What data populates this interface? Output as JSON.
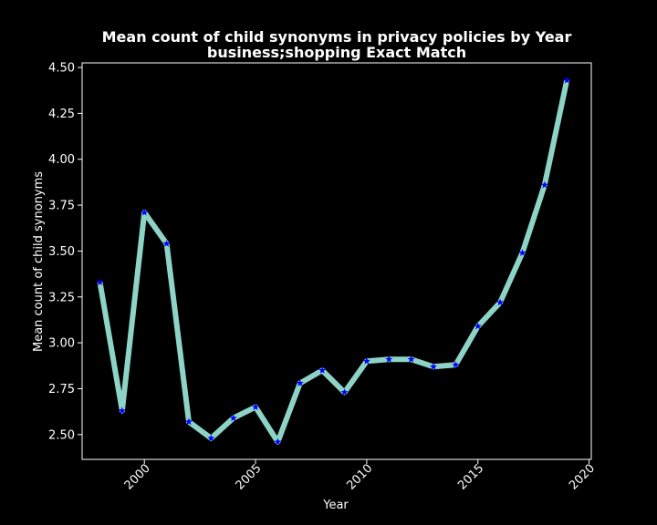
{
  "chart_data": {
    "type": "line",
    "title_line1": "Mean count of child synonyms in privacy policies by Year",
    "title_line2": "business;shopping Exact Match",
    "xlabel": "Year",
    "ylabel": "Mean count of child synonyms",
    "xlim": [
      1997.2,
      2020.1
    ],
    "ylim": [
      2.365,
      4.525
    ],
    "x_ticks": [
      2000,
      2005,
      2010,
      2015,
      2020
    ],
    "x_tick_labels": [
      "2000",
      "2005",
      "2010",
      "2015",
      "2020"
    ],
    "y_ticks": [
      2.5,
      2.75,
      3.0,
      3.25,
      3.5,
      3.75,
      4.0,
      4.25,
      4.5
    ],
    "y_tick_labels": [
      "2.50",
      "2.75",
      "3.00",
      "3.25",
      "3.50",
      "3.75",
      "4.00",
      "4.25",
      "4.50"
    ],
    "grid": false,
    "colors": {
      "background": "#000000",
      "line": "#8dd3c7",
      "marker": "#0000ff",
      "text": "#ffffff"
    },
    "marker": "star",
    "series": [
      {
        "x": [
          1998,
          1999,
          2000,
          2001,
          2002,
          2003,
          2004,
          2005,
          2006,
          2007,
          2008,
          2009,
          2010,
          2011,
          2012,
          2013,
          2014,
          2015,
          2016,
          2017,
          2018,
          2019
        ],
        "y": [
          3.33,
          2.63,
          3.71,
          3.54,
          2.57,
          2.48,
          2.59,
          2.65,
          2.46,
          2.78,
          2.85,
          2.73,
          2.9,
          2.91,
          2.91,
          2.87,
          2.88,
          3.09,
          3.22,
          3.49,
          3.86,
          4.43
        ]
      }
    ]
  }
}
